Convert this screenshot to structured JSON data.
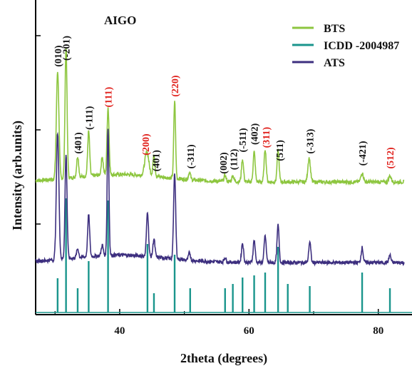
{
  "chart_data": {
    "type": "line",
    "title": "AIGO",
    "xlabel": "2theta (degrees)",
    "ylabel": "Intensity (arb.units)",
    "xlim": [
      27,
      84
    ],
    "x_ticks": [
      "40",
      "60",
      "80"
    ],
    "x_tick_values": [
      40,
      60,
      80
    ],
    "grid": false,
    "legend_position": "top-right",
    "colors": {
      "BTS": "#8dc63f",
      "ICDD -2004987": "#1a958c",
      "ATS": "#3d2f7f",
      "label_black": "#111111",
      "label_red": "#e0201b"
    },
    "series": [
      {
        "name": "BTS",
        "baseline": 0.12,
        "peaks": [
          {
            "x": 30.4,
            "h": 0.72,
            "w": 0.5
          },
          {
            "x": 31.7,
            "h": 0.88,
            "w": 0.4
          },
          {
            "x": 33.5,
            "h": 0.14,
            "w": 0.4
          },
          {
            "x": 35.2,
            "h": 0.3,
            "w": 0.4
          },
          {
            "x": 37.3,
            "h": 0.12,
            "w": 0.4
          },
          {
            "x": 38.2,
            "h": 0.45,
            "w": 0.4
          },
          {
            "x": 44.2,
            "h": 0.16,
            "w": 0.8
          },
          {
            "x": 45.3,
            "h": 0.14,
            "w": 0.4
          },
          {
            "x": 48.5,
            "h": 0.52,
            "w": 0.35
          },
          {
            "x": 50.8,
            "h": 0.05,
            "w": 0.4
          },
          {
            "x": 56.3,
            "h": 0.04,
            "w": 0.4
          },
          {
            "x": 57.5,
            "h": 0.04,
            "w": 0.4
          },
          {
            "x": 59.0,
            "h": 0.15,
            "w": 0.4
          },
          {
            "x": 60.8,
            "h": 0.2,
            "w": 0.4
          },
          {
            "x": 62.5,
            "h": 0.22,
            "w": 0.4
          },
          {
            "x": 64.5,
            "h": 0.21,
            "w": 0.4
          },
          {
            "x": 69.3,
            "h": 0.16,
            "w": 0.5
          },
          {
            "x": 77.5,
            "h": 0.06,
            "w": 0.5
          },
          {
            "x": 81.8,
            "h": 0.04,
            "w": 0.5
          }
        ]
      },
      {
        "name": "ICDD -2004987",
        "sticks": [
          {
            "x": 30.4,
            "h": 0.48
          },
          {
            "x": 31.7,
            "h": 1.6
          },
          {
            "x": 33.5,
            "h": 0.34
          },
          {
            "x": 35.2,
            "h": 0.72
          },
          {
            "x": 38.2,
            "h": 1.57
          },
          {
            "x": 44.3,
            "h": 0.96
          },
          {
            "x": 45.3,
            "h": 0.27
          },
          {
            "x": 48.5,
            "h": 0.81
          },
          {
            "x": 50.9,
            "h": 0.34
          },
          {
            "x": 56.3,
            "h": 0.34
          },
          {
            "x": 57.5,
            "h": 0.4
          },
          {
            "x": 59.0,
            "h": 0.49
          },
          {
            "x": 60.8,
            "h": 0.52
          },
          {
            "x": 62.5,
            "h": 0.56
          },
          {
            "x": 64.5,
            "h": 0.92
          },
          {
            "x": 66.0,
            "h": 0.4
          },
          {
            "x": 69.4,
            "h": 0.37
          },
          {
            "x": 77.5,
            "h": 0.56
          },
          {
            "x": 81.8,
            "h": 0.34
          }
        ]
      },
      {
        "name": "ATS",
        "baseline": 0.12,
        "peaks": [
          {
            "x": 30.4,
            "h": 0.85,
            "w": 0.5
          },
          {
            "x": 31.7,
            "h": 0.7,
            "w": 0.4
          },
          {
            "x": 33.5,
            "h": 0.06,
            "w": 0.4
          },
          {
            "x": 35.2,
            "h": 0.28,
            "w": 0.4
          },
          {
            "x": 37.3,
            "h": 0.07,
            "w": 0.4
          },
          {
            "x": 38.2,
            "h": 0.85,
            "w": 0.35
          },
          {
            "x": 44.3,
            "h": 0.3,
            "w": 0.4
          },
          {
            "x": 45.3,
            "h": 0.12,
            "w": 0.4
          },
          {
            "x": 48.5,
            "h": 0.58,
            "w": 0.4
          },
          {
            "x": 50.8,
            "h": 0.05,
            "w": 0.4
          },
          {
            "x": 56.3,
            "h": 0.03,
            "w": 0.4
          },
          {
            "x": 59.0,
            "h": 0.13,
            "w": 0.4
          },
          {
            "x": 60.8,
            "h": 0.15,
            "w": 0.4
          },
          {
            "x": 62.5,
            "h": 0.18,
            "w": 0.4
          },
          {
            "x": 64.5,
            "h": 0.25,
            "w": 0.4
          },
          {
            "x": 69.4,
            "h": 0.14,
            "w": 0.4
          },
          {
            "x": 77.5,
            "h": 0.1,
            "w": 0.4
          },
          {
            "x": 81.8,
            "h": 0.05,
            "w": 0.4
          }
        ]
      }
    ],
    "annotations": [
      {
        "text": "(010)",
        "x": 30.4,
        "color": "black"
      },
      {
        "text": "(-201)",
        "x": 31.7,
        "color": "black"
      },
      {
        "text": "(401)",
        "x": 33.5,
        "color": "black"
      },
      {
        "text": "(-111)",
        "x": 35.2,
        "color": "black"
      },
      {
        "text": "(111)",
        "x": 38.2,
        "color": "red"
      },
      {
        "text": "(200)",
        "x": 44.0,
        "color": "red"
      },
      {
        "text": "(401)",
        "x": 45.6,
        "color": "black"
      },
      {
        "text": "(220)",
        "x": 48.5,
        "color": "red"
      },
      {
        "text": "(-311)",
        "x": 50.9,
        "color": "black"
      },
      {
        "text": "(002)",
        "x": 56.0,
        "color": "black"
      },
      {
        "text": "(112)",
        "x": 57.6,
        "color": "black"
      },
      {
        "text": "(-511)",
        "x": 59.0,
        "color": "black"
      },
      {
        "text": "(402)",
        "x": 60.8,
        "color": "black"
      },
      {
        "text": "(311)",
        "x": 62.6,
        "color": "red"
      },
      {
        "text": "(511)",
        "x": 64.7,
        "color": "black"
      },
      {
        "text": "(-313)",
        "x": 69.4,
        "color": "black"
      },
      {
        "text": "(-421)",
        "x": 77.5,
        "color": "black"
      },
      {
        "text": "(512)",
        "x": 81.8,
        "color": "red"
      }
    ]
  }
}
